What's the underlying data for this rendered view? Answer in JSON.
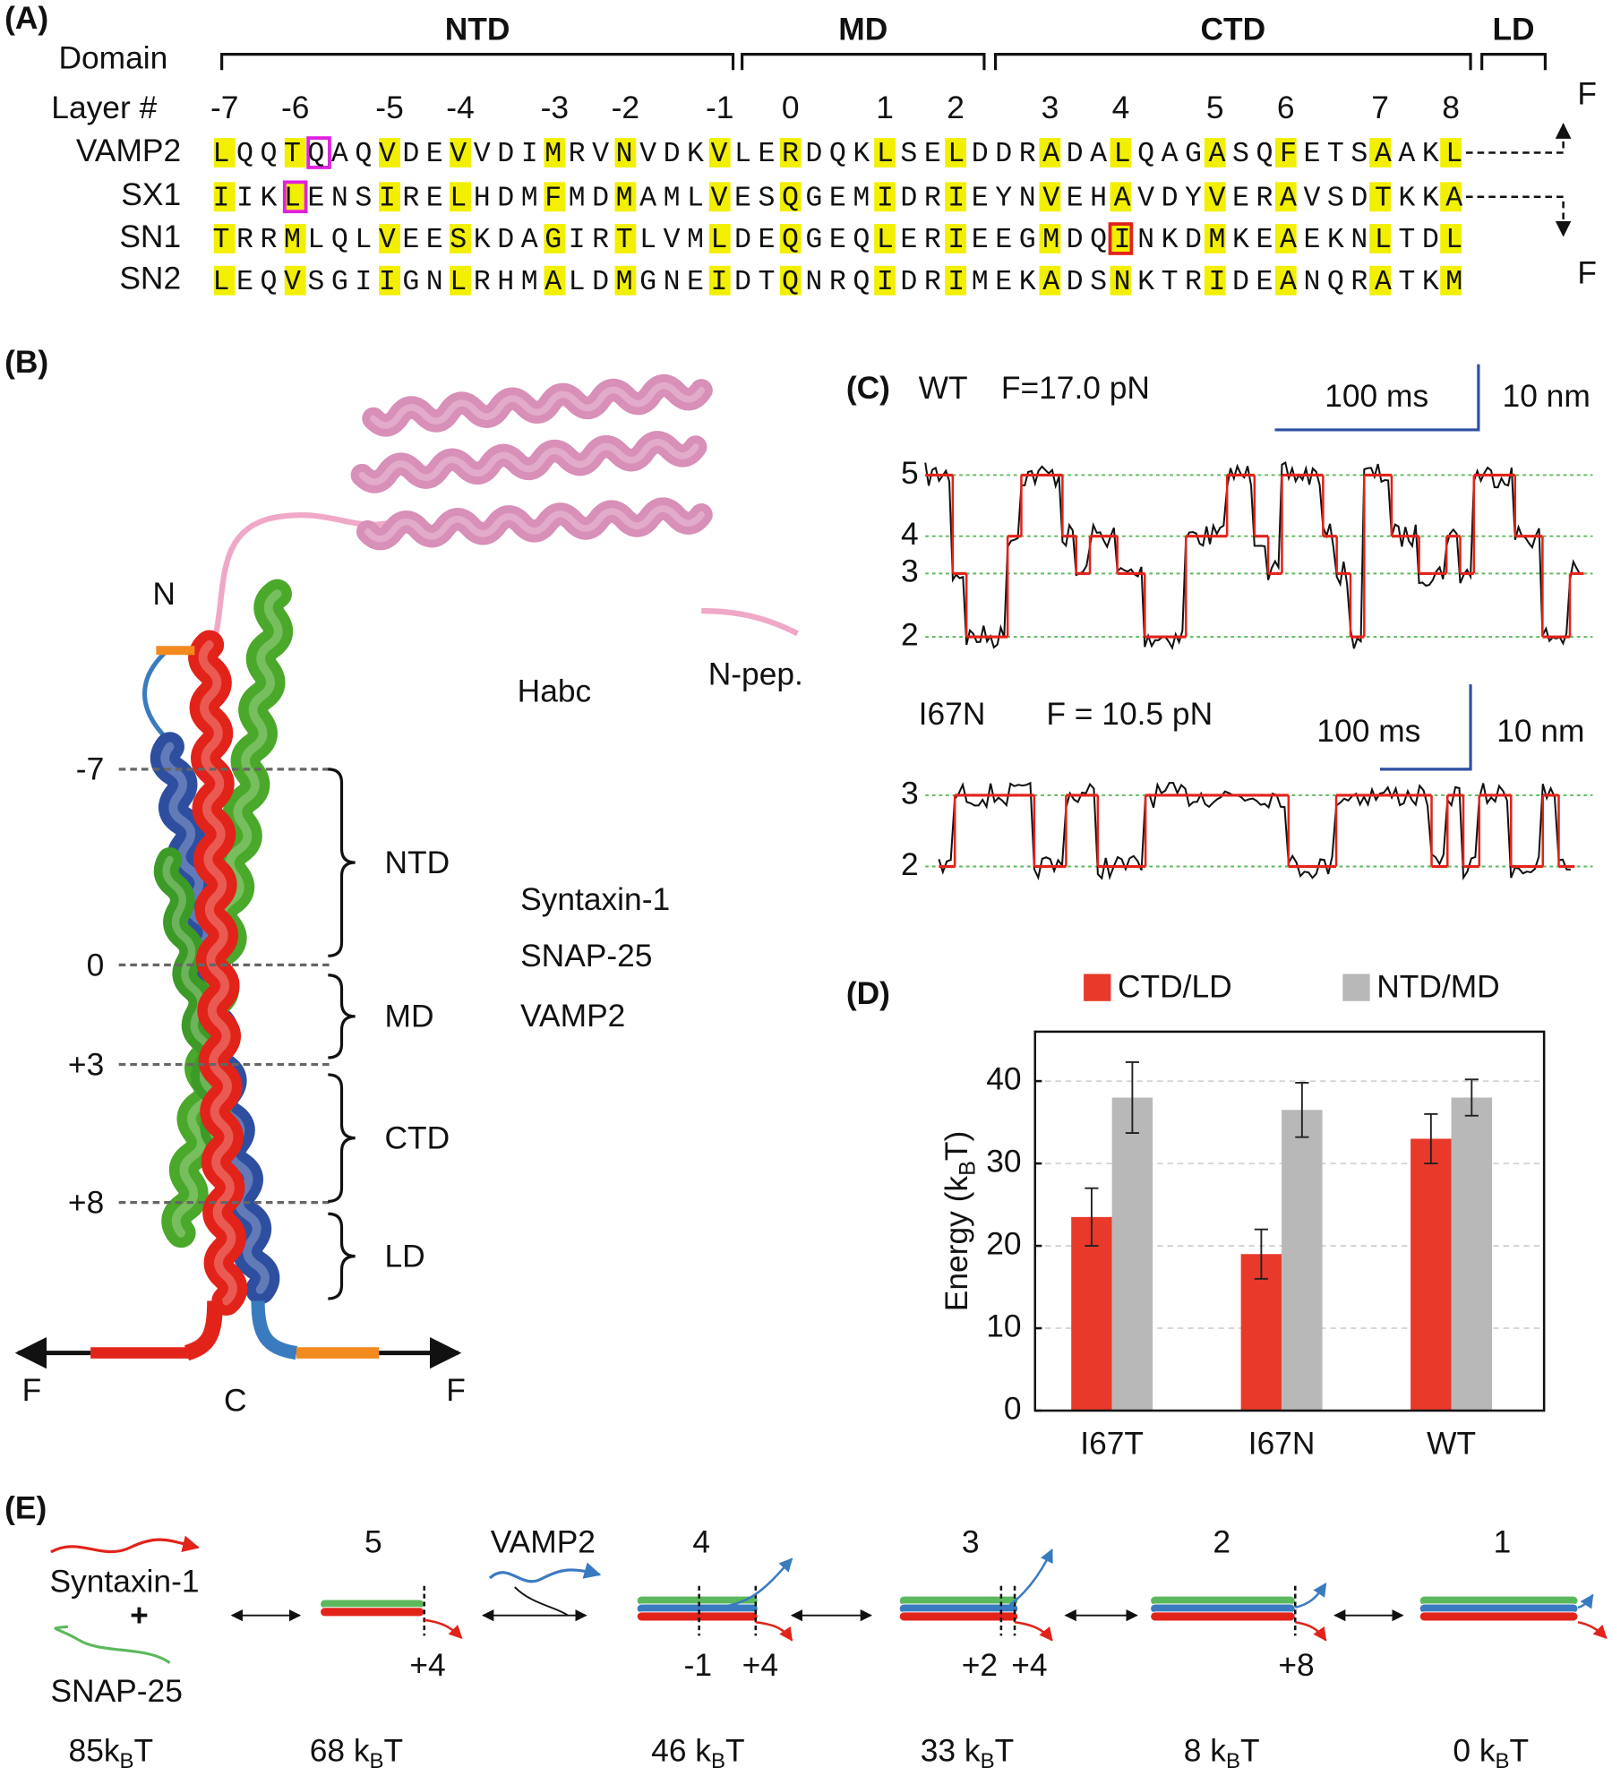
{
  "panel_a": {
    "label": "(A)",
    "domain_label": "Domain",
    "domains": [
      "NTD",
      "MD",
      "CTD",
      "LD"
    ],
    "layer_label": "Layer #",
    "layers": [
      -7,
      -6,
      -5,
      -4,
      -3,
      -2,
      -1,
      0,
      1,
      2,
      3,
      4,
      5,
      6,
      7,
      8
    ],
    "rows": [
      {
        "name": "VAMP2",
        "sequence": "LQQTQAQVDEVVDIMRVNVDKVLERDQKLSELDDRADALQAGASQFETSAAKL"
      },
      {
        "name": "SX1",
        "sequence": "IIKLENSIRELHDMFMDMAMLVESQGEMIDRIEYNVEHAVDYVERAVSDTKKA"
      },
      {
        "name": "SN1",
        "sequence": "TRRMLQLVEESKDAGIRTLVMLDEQGEQLERIEEGMDQINKDMKEAEKNLTDL"
      },
      {
        "name": "SN2",
        "sequence": "LEQVSGIIGNLRHMALDMGNEIDTQNRQIDRIMEKADSNKTRIDEANQRATKM"
      }
    ],
    "force": "F"
  },
  "panel_b": {
    "label": "(B)",
    "n_term": "N",
    "c_term": "C",
    "force": "F",
    "habc": "Habc",
    "npep": "N-pep.",
    "layers": [
      "-7",
      "0",
      "+3",
      "+8"
    ],
    "domains": [
      "NTD",
      "MD",
      "CTD",
      "LD"
    ],
    "legend": [
      {
        "name": "Syntaxin-1",
        "color": "#e2231a"
      },
      {
        "name": "SNAP-25",
        "color": "#4aa82a"
      },
      {
        "name": "VAMP2",
        "color": "#3a6bb5"
      }
    ]
  },
  "panel_c": {
    "label": "(C)",
    "traces": [
      {
        "title": "WT",
        "force": "F=17.0 pN",
        "time_scale": "100 ms",
        "length_scale": "10 nm",
        "levels": [
          5,
          4,
          3,
          2
        ],
        "states": [
          5,
          5,
          3,
          2,
          2,
          2,
          4,
          5,
          5,
          5,
          4,
          3,
          4,
          4,
          3,
          3,
          2,
          2,
          2,
          4,
          4,
          4,
          5,
          5,
          4,
          3,
          5,
          5,
          5,
          4,
          3,
          2,
          5,
          5,
          4,
          4,
          3,
          3,
          4,
          3,
          5,
          5,
          5,
          4,
          4,
          2,
          2,
          3
        ]
      },
      {
        "title": "I67N",
        "force": "F = 10.5 pN",
        "time_scale": "100 ms",
        "length_scale": "10 nm",
        "levels": [
          3,
          2
        ],
        "states": [
          2,
          3,
          3,
          3,
          3,
          3,
          2,
          2,
          3,
          3,
          2,
          2,
          2,
          3,
          3,
          3,
          3,
          3,
          3,
          3,
          3,
          3,
          2,
          2,
          2,
          3,
          3,
          3,
          3,
          3,
          3,
          2,
          3,
          2,
          3,
          3,
          2,
          2,
          3,
          2
        ]
      }
    ]
  },
  "chart_data": {
    "type": "bar",
    "label": "(D)",
    "categories": [
      "I67T",
      "I67N",
      "WT"
    ],
    "series": [
      {
        "name": "CTD/LD",
        "color": "#e8392a",
        "values": [
          23.5,
          19,
          33
        ],
        "errors": [
          3.5,
          3,
          3
        ]
      },
      {
        "name": "NTD/MD",
        "color": "#b8b8b8",
        "values": [
          38,
          36.5,
          38
        ],
        "errors": [
          4.3,
          3.3,
          2.2
        ]
      }
    ],
    "ylabel": [
      "Energy (k",
      "B",
      "T)"
    ],
    "ylim": [
      0,
      46
    ],
    "yticks": [
      0,
      10,
      20,
      30,
      40
    ],
    "grid": true
  },
  "panel_e": {
    "label": "(E)",
    "reactants": [
      "Syntaxin-1",
      "+",
      "SNAP-25"
    ],
    "vamp": "VAMP2",
    "states": [
      5,
      4,
      3,
      2,
      1
    ],
    "layer_marks": [
      "+4",
      "-1",
      "+4",
      "+2",
      "+4",
      "+8"
    ],
    "energies": [
      [
        "85k",
        "B",
        "T"
      ],
      [
        "68 k",
        "B",
        "T"
      ],
      [
        "46 k",
        "B",
        "T"
      ],
      [
        "33 k",
        "B",
        "T"
      ],
      [
        "8 k",
        "B",
        "T"
      ],
      [
        "0 k",
        "B",
        "T"
      ]
    ]
  }
}
